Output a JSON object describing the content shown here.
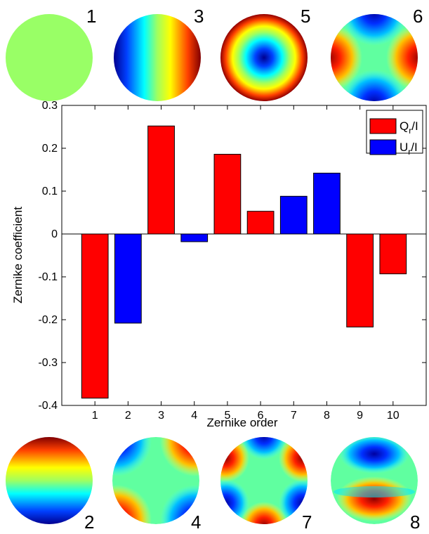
{
  "chart_data": {
    "type": "bar",
    "title": "",
    "xlabel": "Zernike order",
    "ylabel": "Zernike coefficient",
    "ylim": [
      -0.4,
      0.3
    ],
    "yticks": [
      -0.4,
      -0.3,
      -0.2,
      -0.1,
      0,
      0.1,
      0.2,
      0.3
    ],
    "ytick_labels": [
      "-0.4",
      "-0.3",
      "-0.2",
      "-0.1",
      "0",
      "0.1",
      "0.2",
      "0.3"
    ],
    "categories": [
      "1",
      "2",
      "3",
      "4",
      "5",
      "6",
      "7",
      "8",
      "9",
      "10"
    ],
    "values": [
      -0.383,
      -0.208,
      0.252,
      -0.018,
      0.186,
      0.053,
      0.088,
      0.142,
      -0.217,
      -0.093
    ],
    "bar_series": [
      "Qr/I",
      "Ur/I",
      "Qr/I",
      "Ur/I",
      "Qr/I",
      "Qr/I",
      "Ur/I",
      "Ur/I",
      "Qr/I",
      "Qr/I"
    ],
    "series": [
      {
        "name": "Qr/I",
        "main": "Q",
        "sub": "r",
        "tail": "/I",
        "color": "#ff0000"
      },
      {
        "name": "Ur/I",
        "main": "U",
        "sub": "r",
        "tail": "/I",
        "color": "#0000ff"
      }
    ],
    "legend_position": "top-right",
    "grid": false
  },
  "zernike_thumbnails": {
    "top": [
      {
        "label": "1",
        "mode": "piston"
      },
      {
        "label": "3",
        "mode": "tilt-x"
      },
      {
        "label": "5",
        "mode": "defocus"
      },
      {
        "label": "6",
        "mode": "astigmatism-cos"
      }
    ],
    "bottom": [
      {
        "label": "2",
        "mode": "tilt-y"
      },
      {
        "label": "4",
        "mode": "astigmatism-sin"
      },
      {
        "label": "7",
        "mode": "trefoil"
      },
      {
        "label": "8",
        "mode": "coma"
      }
    ]
  }
}
